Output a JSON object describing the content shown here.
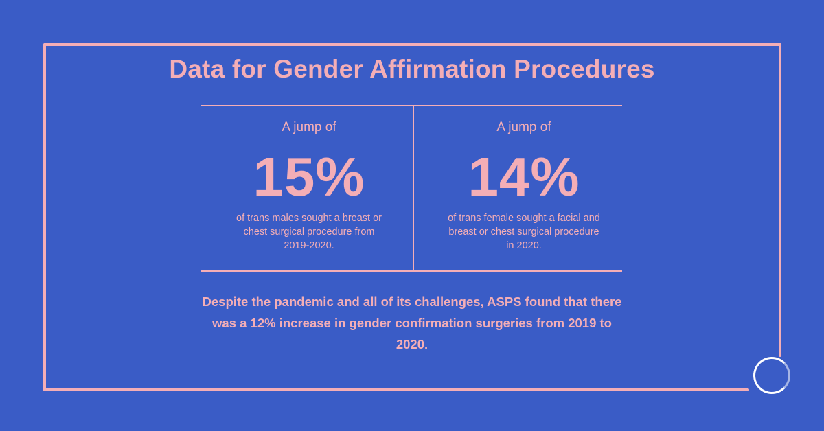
{
  "title": "Data for Gender Affirmation Procedures",
  "stats": [
    {
      "lead": "A jump of",
      "value": "15%",
      "description": "of trans males sought a breast or chest surgical procedure from 2019-2020."
    },
    {
      "lead": "A jump of",
      "value": "14%",
      "description": "of trans female sought a facial and breast or chest surgical procedure in 2020."
    }
  ],
  "summary": "Despite the pandemic and all of its challenges, ASPS found that there was a 12% increase in gender confirmation surgeries from 2019 to 2020.",
  "colors": {
    "background": "#3a5cc6",
    "accent": "#f4aeb6",
    "logo": "#ffffff"
  },
  "icons": {
    "logo": "circle-logo-icon"
  }
}
